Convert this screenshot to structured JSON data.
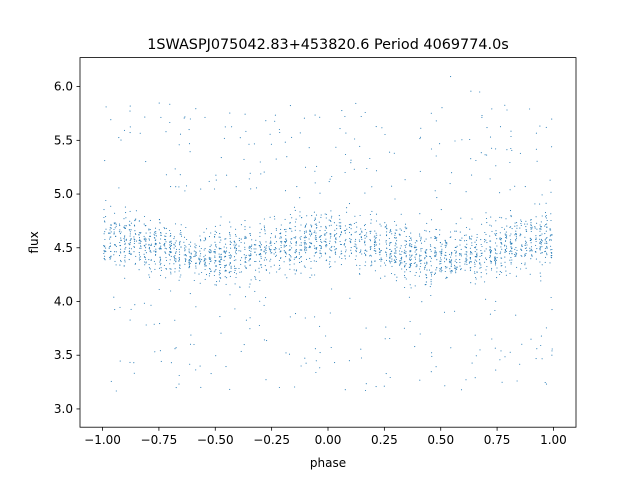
{
  "chart_data": {
    "type": "scatter",
    "title": "1SWASPJ075042.83+453820.6 Period 4069774.0s",
    "xlabel": "phase",
    "ylabel": "flux",
    "xlim": [
      -1.1,
      1.1
    ],
    "ylim": [
      2.83,
      6.27
    ],
    "x_ticks": [
      -1.0,
      -0.75,
      -0.5,
      -0.25,
      0.0,
      0.25,
      0.5,
      0.75,
      1.0
    ],
    "x_tick_labels": [
      "−1.00",
      "−0.75",
      "−0.50",
      "−0.25",
      "0.00",
      "0.25",
      "0.50",
      "0.75",
      "1.00"
    ],
    "y_ticks": [
      3.0,
      3.5,
      4.0,
      4.5,
      5.0,
      5.5,
      6.0
    ],
    "y_tick_labels": [
      "3.0",
      "3.5",
      "4.0",
      "4.5",
      "5.0",
      "5.5",
      "6.0"
    ],
    "grid": false,
    "series": [
      {
        "color": "#1f77b4",
        "marker": "point",
        "x_range": [
          -1.0,
          1.0
        ],
        "median_flux": 4.5,
        "typical_band": [
          4.0,
          5.0
        ],
        "min_flux": 2.97,
        "max_flux": 6.1,
        "symmetric_about_phase": 0.0
      }
    ]
  }
}
